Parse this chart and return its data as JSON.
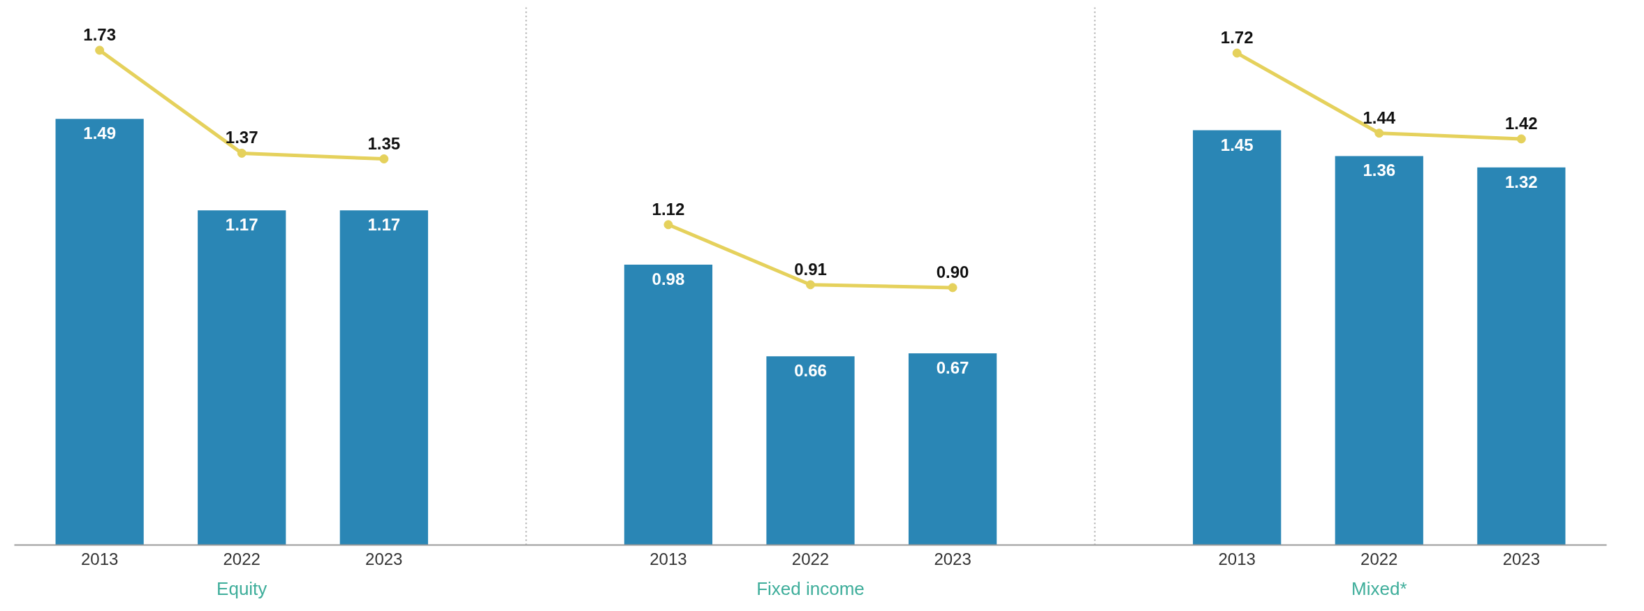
{
  "chart_data": {
    "type": "bar",
    "categories": [
      "2013",
      "2022",
      "2023",
      null,
      "2013",
      "2022",
      "2023",
      null,
      "2013",
      "2022",
      "2023"
    ],
    "ylim": [
      0,
      1.88
    ],
    "tick_labels": "x",
    "series": [
      {
        "color": "#2a86b5",
        "values": [
          1.49,
          1.17,
          1.17,
          null,
          0.98,
          0.66,
          0.67,
          null,
          1.45,
          1.36,
          1.32
        ],
        "value_labels": [
          "1.49",
          "1.17",
          "1.17",
          null,
          "0.98",
          "0.66",
          "0.67",
          null,
          "1.45",
          "1.36",
          "1.32"
        ]
      },
      {
        "type": "line",
        "color": "#e5d15c",
        "marker": "circle",
        "line_style": "solid",
        "values": [
          1.73,
          1.37,
          1.35,
          null,
          1.12,
          0.91,
          0.9,
          null,
          1.72,
          1.44,
          1.42
        ],
        "value_labels": [
          "1.73",
          "1.37",
          "1.35",
          null,
          "1.12",
          "0.91",
          "0.90",
          null,
          "1.72",
          "1.44",
          "1.42"
        ]
      }
    ],
    "annotations": [
      "Equity",
      "Fixed income",
      "Mixed*"
    ]
  }
}
